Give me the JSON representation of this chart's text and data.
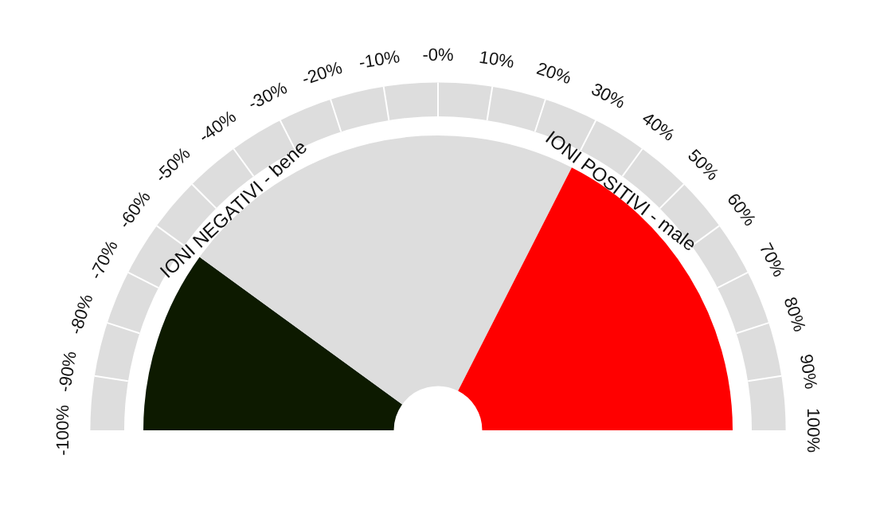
{
  "chart_data": {
    "type": "donut",
    "categories": [
      "IONI NEGATIVI - bene",
      null,
      "IONI POSITIVI - male"
    ],
    "values": [
      20,
      45,
      35
    ],
    "colors": [
      "#0d1a00",
      "#dddddd",
      "#ff0000"
    ],
    "annotations": [
      "-100%",
      "-90%",
      "-80%",
      "-70%",
      "-60%",
      "-50%",
      "-40%",
      "-30%",
      "-20%",
      "-10%",
      "-0%",
      "10%",
      "20%",
      "30%",
      "40%",
      "50%",
      "60%",
      "70%",
      "80%",
      "90%",
      "100%"
    ],
    "legend": false
  }
}
